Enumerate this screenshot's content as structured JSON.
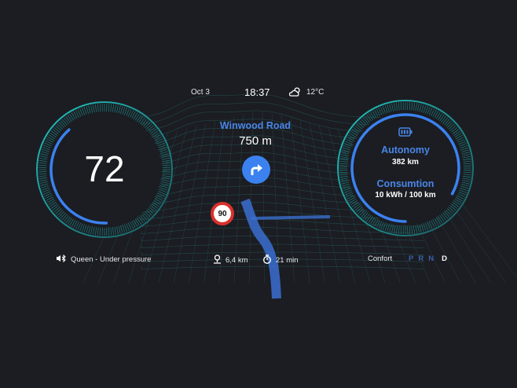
{
  "header": {
    "date": "Oct 3",
    "time": "18:37",
    "temperature": "12°C",
    "weather_icon": "partly-cloudy-sun-icon"
  },
  "navigation": {
    "street": "Winwood Road",
    "distance_to_turn": "750 m",
    "turn_icon": "turn-right-arrow-icon",
    "speed_limit": "90",
    "remaining_distance": "6,4 km",
    "remaining_time": "21 min"
  },
  "speedometer": {
    "speed": "72",
    "level_fraction": 0.6
  },
  "battery": {
    "autonomy_label": "Autonomy",
    "autonomy_value": "382 km",
    "consumption_label": "Consumtion",
    "consumption_value": "10 kWh / 100 km",
    "level_fraction": 0.83
  },
  "media": {
    "track": "Queen - Under pressure",
    "icon": "bluetooth-audio-icon"
  },
  "drive": {
    "mode": "Confort",
    "gears": [
      "P",
      "R",
      "N",
      "D"
    ],
    "selected_gear": "D"
  },
  "colors": {
    "background": "#1b1d22",
    "accent_blue": "#3b82f0",
    "teal": "#1fb5b0",
    "speed_limit_red": "#d9302c"
  }
}
